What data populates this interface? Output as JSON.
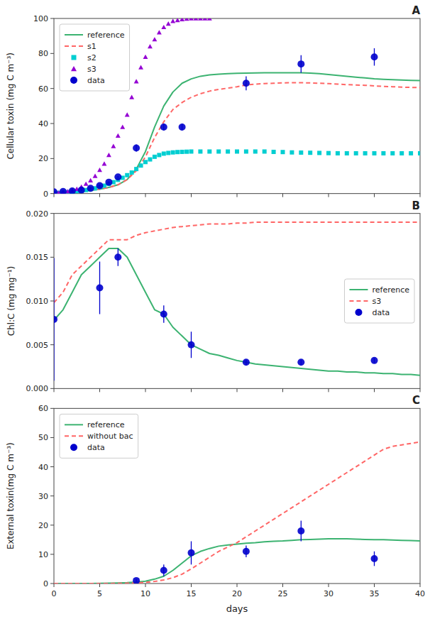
{
  "chart_data": [
    {
      "type": "line",
      "title": "A",
      "ylabel": "Cellular toxin (mg C m⁻³)",
      "xlim": [
        0,
        40
      ],
      "ylim": [
        0,
        100
      ],
      "xticks": [
        0,
        5,
        10,
        15,
        20,
        25,
        30,
        35,
        40
      ],
      "yticks": [
        0,
        20,
        40,
        60,
        80,
        100
      ],
      "grid": false,
      "legend": "upper left",
      "tick_labels": "y",
      "series": [
        {
          "name": "reference",
          "type": "line",
          "color": "#3cb371",
          "line_style": "solid",
          "x": [
            0,
            1,
            2,
            3,
            4,
            5,
            6,
            7,
            8,
            9,
            10,
            11,
            12,
            13,
            14,
            15,
            16,
            17,
            18,
            19,
            20,
            21,
            22,
            23,
            24,
            25,
            26,
            27,
            28,
            29,
            30,
            31,
            32,
            33,
            34,
            35,
            36,
            37,
            38,
            39,
            40
          ],
          "values": [
            0.3,
            0.5,
            0.8,
            1.2,
            1.8,
            2.5,
            3.5,
            5.0,
            8.0,
            14.0,
            24.0,
            38.0,
            50.0,
            58.0,
            63.0,
            65.5,
            67.0,
            67.8,
            68.2,
            68.5,
            68.7,
            68.8,
            68.9,
            69.0,
            69.0,
            69.0,
            69.0,
            69.0,
            68.8,
            68.5,
            68.0,
            67.5,
            67.0,
            66.5,
            66.0,
            65.5,
            65.2,
            65.0,
            64.8,
            64.6,
            64.5
          ]
        },
        {
          "name": "s1",
          "type": "line",
          "color": "#ff6666",
          "line_style": "dashed",
          "x": [
            0,
            1,
            2,
            3,
            4,
            5,
            6,
            7,
            8,
            9,
            10,
            11,
            12,
            13,
            14,
            15,
            16,
            17,
            18,
            19,
            20,
            21,
            22,
            23,
            24,
            25,
            26,
            27,
            28,
            29,
            30,
            31,
            32,
            33,
            34,
            35,
            36,
            37,
            38,
            39,
            40
          ],
          "values": [
            0.3,
            0.5,
            0.8,
            1.2,
            1.8,
            2.5,
            3.5,
            5.0,
            8.0,
            13.0,
            21.0,
            32.0,
            41.0,
            48.0,
            52.0,
            55.0,
            57.0,
            58.5,
            59.5,
            60.2,
            61.0,
            62.0,
            62.5,
            62.8,
            63.0,
            63.2,
            63.3,
            63.3,
            63.2,
            63.0,
            62.8,
            62.5,
            62.2,
            62.0,
            61.8,
            61.5,
            61.2,
            61.0,
            60.8,
            60.6,
            60.5
          ]
        },
        {
          "name": "s2",
          "type": "scatter",
          "color": "#00ced1",
          "marker": "square",
          "x": [
            0,
            0.5,
            1,
            1.5,
            2,
            2.5,
            3,
            3.5,
            4,
            4.5,
            5,
            5.5,
            6,
            6.5,
            7,
            7.5,
            8,
            8.5,
            9,
            9.5,
            10,
            10.5,
            11,
            11.5,
            12,
            12.5,
            13,
            13.5,
            14,
            14.5,
            15,
            16,
            17,
            18,
            19,
            20,
            21,
            22,
            23,
            24,
            25,
            26,
            27,
            28,
            29,
            30,
            31,
            32,
            33,
            34,
            35,
            36,
            37,
            38,
            39,
            40
          ],
          "values": [
            0.3,
            0.4,
            0.6,
            0.8,
            1.0,
            1.3,
            1.6,
            2.0,
            2.5,
            3.0,
            3.8,
            4.5,
            5.5,
            6.5,
            7.8,
            9.0,
            10.5,
            12.0,
            14.0,
            16.0,
            18.0,
            19.5,
            21.0,
            22.0,
            22.8,
            23.2,
            23.5,
            23.7,
            23.8,
            23.9,
            24.0,
            24.0,
            24.0,
            24.0,
            24.0,
            24.0,
            24.0,
            24.0,
            24.0,
            23.8,
            23.7,
            23.5,
            23.4,
            23.3,
            23.2,
            23.1,
            23.0,
            23.0,
            23.0,
            23.0,
            23.0,
            23.0,
            23.0,
            23.0,
            23.0,
            23.0
          ]
        },
        {
          "name": "s3",
          "type": "scatter",
          "color": "#9400d3",
          "marker": "triangle",
          "x": [
            0,
            0.5,
            1,
            1.5,
            2,
            2.5,
            3,
            3.5,
            4,
            4.5,
            5,
            5.5,
            6,
            6.5,
            7,
            7.5,
            8,
            8.5,
            9,
            9.5,
            10,
            10.5,
            11,
            11.5,
            12,
            12.5,
            13,
            13.5,
            14,
            14.5,
            15,
            15.5,
            16,
            16.5,
            17
          ],
          "values": [
            0.3,
            0.5,
            0.8,
            1.2,
            1.8,
            2.6,
            3.8,
            5.5,
            7.5,
            10.0,
            13.5,
            17.0,
            22.0,
            27.0,
            33.0,
            38.0,
            45.0,
            55.0,
            64.0,
            72.0,
            78.0,
            84.0,
            88.0,
            92.0,
            95.0,
            97.0,
            98.5,
            99.0,
            99.5,
            99.8,
            100.0,
            100.0,
            100.0,
            100.0,
            100.0
          ]
        },
        {
          "name": "data",
          "type": "scatter",
          "color": "#0000cd",
          "marker": "circle",
          "x": [
            0,
            1,
            2,
            3,
            4,
            5,
            6,
            7,
            9,
            12,
            14,
            21,
            27,
            35
          ],
          "values": [
            1.0,
            1.2,
            1.5,
            2.0,
            3.0,
            4.5,
            6.5,
            9.5,
            26.0,
            38.0,
            38.0,
            63.0,
            74.0,
            78.0
          ],
          "errors": [
            0.5,
            0.5,
            0.5,
            0.5,
            0.5,
            0.5,
            0.5,
            0.5,
            2.0,
            2.0,
            2.0,
            4.0,
            5.0,
            5.0
          ]
        }
      ]
    },
    {
      "type": "line",
      "title": "B",
      "ylabel": "Chl:C (mg mg⁻¹)",
      "xlim": [
        0,
        40
      ],
      "ylim": [
        0.0,
        0.02
      ],
      "xticks": [
        0,
        5,
        10,
        15,
        20,
        25,
        30,
        35,
        40
      ],
      "yticks": [
        {
          "value": 0,
          "label": "0.000"
        },
        0.005,
        {
          "value": 0.01,
          "label": "0.010"
        },
        0.015,
        {
          "value": 0.02,
          "label": "0.020"
        }
      ],
      "grid": false,
      "legend": "center right",
      "tick_labels": "y",
      "series": [
        {
          "name": "reference",
          "type": "line",
          "color": "#3cb371",
          "line_style": "solid",
          "x": [
            0,
            1,
            2,
            3,
            4,
            5,
            6,
            7,
            8,
            9,
            10,
            11,
            12,
            13,
            14,
            15,
            16,
            17,
            18,
            19,
            20,
            21,
            22,
            23,
            24,
            25,
            26,
            27,
            28,
            29,
            30,
            31,
            32,
            33,
            34,
            35,
            36,
            37,
            38,
            39,
            40
          ],
          "values": [
            0.0078,
            0.009,
            0.011,
            0.013,
            0.014,
            0.015,
            0.016,
            0.016,
            0.015,
            0.013,
            0.011,
            0.009,
            0.0085,
            0.007,
            0.006,
            0.005,
            0.0045,
            0.004,
            0.0038,
            0.0035,
            0.0032,
            0.003,
            0.0028,
            0.0027,
            0.0026,
            0.0025,
            0.0024,
            0.0023,
            0.0022,
            0.0021,
            0.002,
            0.002,
            0.0019,
            0.0019,
            0.0018,
            0.0018,
            0.0017,
            0.0017,
            0.0016,
            0.0016,
            0.0015
          ]
        },
        {
          "name": "s3",
          "type": "line",
          "color": "#ff6666",
          "line_style": "dashed",
          "x": [
            0,
            1,
            2,
            3,
            4,
            5,
            6,
            7,
            8,
            9,
            10,
            11,
            12,
            13,
            14,
            15,
            16,
            17,
            18,
            19,
            20,
            21,
            22,
            23,
            24,
            25,
            26,
            27,
            28,
            29,
            30,
            31,
            32,
            33,
            34,
            35,
            36,
            37,
            38,
            39,
            40
          ],
          "values": [
            0.0098,
            0.011,
            0.013,
            0.014,
            0.015,
            0.016,
            0.017,
            0.017,
            0.017,
            0.0175,
            0.0178,
            0.018,
            0.0182,
            0.0184,
            0.0185,
            0.0186,
            0.0187,
            0.0188,
            0.0188,
            0.0188,
            0.0189,
            0.0189,
            0.019,
            0.019,
            0.019,
            0.019,
            0.019,
            0.019,
            0.019,
            0.019,
            0.019,
            0.019,
            0.019,
            0.019,
            0.019,
            0.019,
            0.019,
            0.019,
            0.019,
            0.019,
            0.019
          ]
        },
        {
          "name": "data",
          "type": "scatter",
          "color": "#0000cd",
          "marker": "circle",
          "x": [
            0,
            5,
            7,
            12,
            15,
            21,
            27,
            35
          ],
          "values": [
            0.0079,
            0.0115,
            0.015,
            0.0085,
            0.005,
            0.003,
            0.003,
            0.0032
          ],
          "errors": [
            0.007,
            0.003,
            0.001,
            0.001,
            0.0015,
            0.0003,
            0.0003,
            0.0003
          ]
        }
      ]
    },
    {
      "type": "line",
      "title": "C",
      "ylabel": "External toxin(mg C m⁻³)",
      "xlabel": "days",
      "xlim": [
        0,
        40
      ],
      "ylim": [
        0,
        60
      ],
      "xticks": [
        0,
        5,
        10,
        15,
        20,
        25,
        30,
        35,
        40
      ],
      "yticks": [
        0,
        10,
        20,
        30,
        40,
        50,
        60
      ],
      "grid": false,
      "legend": "upper left",
      "series": [
        {
          "name": "reference",
          "type": "line",
          "color": "#3cb371",
          "line_style": "solid",
          "x": [
            0,
            1,
            2,
            3,
            4,
            5,
            6,
            7,
            8,
            9,
            10,
            11,
            12,
            13,
            14,
            15,
            16,
            17,
            18,
            19,
            20,
            21,
            22,
            23,
            24,
            25,
            26,
            27,
            28,
            29,
            30,
            31,
            32,
            33,
            34,
            35,
            36,
            37,
            38,
            39,
            40
          ],
          "values": [
            0.0,
            0.0,
            0.01,
            0.02,
            0.03,
            0.05,
            0.1,
            0.2,
            0.3,
            0.5,
            0.8,
            1.5,
            2.5,
            4.5,
            7.0,
            9.5,
            11.0,
            12.0,
            12.8,
            13.2,
            13.5,
            13.8,
            14.0,
            14.3,
            14.5,
            14.6,
            14.8,
            15.0,
            15.1,
            15.2,
            15.3,
            15.3,
            15.3,
            15.2,
            15.1,
            15.0,
            15.0,
            14.9,
            14.8,
            14.7,
            14.6
          ]
        },
        {
          "name": "without bac",
          "type": "line",
          "color": "#ff6666",
          "line_style": "dashed",
          "x": [
            0,
            1,
            2,
            3,
            4,
            5,
            6,
            7,
            8,
            9,
            10,
            11,
            12,
            13,
            14,
            15,
            16,
            17,
            18,
            19,
            20,
            21,
            22,
            23,
            24,
            25,
            26,
            27,
            28,
            29,
            30,
            31,
            32,
            33,
            34,
            35,
            36,
            37,
            38,
            39,
            40
          ],
          "values": [
            0.0,
            0.0,
            0.0,
            0.0,
            0.0,
            0.01,
            0.02,
            0.05,
            0.1,
            0.2,
            0.4,
            0.7,
            1.2,
            2.0,
            3.2,
            5.0,
            7.0,
            9.0,
            11.0,
            12.5,
            14.0,
            16.0,
            18.0,
            20.0,
            22.0,
            24.0,
            26.0,
            28.0,
            30.0,
            32.0,
            34.0,
            36.0,
            38.0,
            40.0,
            42.0,
            44.0,
            46.0,
            47.0,
            47.5,
            48.0,
            48.5
          ]
        },
        {
          "name": "data",
          "type": "scatter",
          "color": "#0000cd",
          "marker": "circle",
          "x": [
            9,
            12,
            15,
            21,
            27,
            35
          ],
          "values": [
            1.0,
            4.5,
            10.5,
            11.0,
            18.0,
            8.5
          ],
          "errors": [
            0.5,
            2.0,
            4.0,
            2.0,
            3.5,
            2.5
          ]
        }
      ]
    }
  ]
}
